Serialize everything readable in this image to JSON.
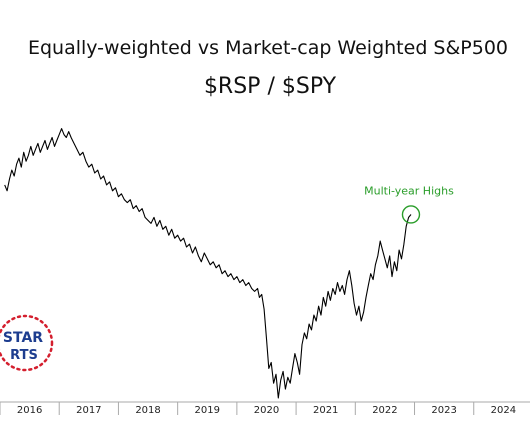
{
  "chart_data": {
    "type": "line",
    "title": "Equally-weighted vs Market-cap Weighted S&P500",
    "subtitle": "$RSP / $SPY",
    "xlabel": "",
    "ylabel": "",
    "grid": false,
    "x_ticks": [
      "2016",
      "2017",
      "2018",
      "2019",
      "2020",
      "2021",
      "2022",
      "2023",
      "2024"
    ],
    "x_range": [
      2015.5,
      2024.45
    ],
    "ylim": [
      0.0,
      1.0
    ],
    "series": [
      {
        "color": "#000000",
        "x": [
          2015.58,
          2015.62,
          2015.66,
          2015.7,
          2015.74,
          2015.78,
          2015.82,
          2015.86,
          2015.9,
          2015.94,
          2015.98,
          2016.02,
          2016.06,
          2016.1,
          2016.14,
          2016.18,
          2016.22,
          2016.26,
          2016.3,
          2016.34,
          2016.38,
          2016.42,
          2016.46,
          2016.5,
          2016.54,
          2016.58,
          2016.62,
          2016.66,
          2016.7,
          2016.75,
          2016.8,
          2016.85,
          2016.9,
          2016.95,
          2017.0,
          2017.05,
          2017.1,
          2017.15,
          2017.2,
          2017.25,
          2017.3,
          2017.35,
          2017.4,
          2017.45,
          2017.5,
          2017.55,
          2017.6,
          2017.65,
          2017.7,
          2017.75,
          2017.8,
          2017.85,
          2017.9,
          2017.95,
          2018.0,
          2018.05,
          2018.1,
          2018.15,
          2018.2,
          2018.25,
          2018.3,
          2018.35,
          2018.4,
          2018.45,
          2018.5,
          2018.55,
          2018.6,
          2018.65,
          2018.7,
          2018.75,
          2018.8,
          2018.85,
          2018.9,
          2018.95,
          2019.0,
          2019.05,
          2019.1,
          2019.15,
          2019.2,
          2019.25,
          2019.3,
          2019.35,
          2019.4,
          2019.45,
          2019.5,
          2019.55,
          2019.6,
          2019.65,
          2019.7,
          2019.75,
          2019.8,
          2019.85,
          2019.88,
          2019.92,
          2019.96,
          2020.0,
          2020.04,
          2020.08,
          2020.12,
          2020.16,
          2020.2,
          2020.24,
          2020.28,
          2020.32,
          2020.36,
          2020.4,
          2020.44,
          2020.48,
          2020.52,
          2020.56,
          2020.6,
          2020.64,
          2020.68,
          2020.72,
          2020.76,
          2020.8,
          2020.84,
          2020.88,
          2020.92,
          2020.96,
          2021.0,
          2021.04,
          2021.08,
          2021.12,
          2021.16,
          2021.2,
          2021.24,
          2021.28,
          2021.32,
          2021.36,
          2021.4,
          2021.44,
          2021.48,
          2021.52,
          2021.56,
          2021.6,
          2021.64,
          2021.68,
          2021.72,
          2021.76,
          2021.8,
          2021.84,
          2021.88,
          2021.92,
          2021.96,
          2022.0,
          2022.04,
          2022.08,
          2022.12,
          2022.16,
          2022.2,
          2022.24,
          2022.28,
          2022.32,
          2022.36,
          2022.4,
          2022.44
        ],
        "y": [
          0.72,
          0.7,
          0.74,
          0.77,
          0.75,
          0.79,
          0.81,
          0.78,
          0.83,
          0.8,
          0.82,
          0.85,
          0.82,
          0.84,
          0.86,
          0.83,
          0.85,
          0.87,
          0.84,
          0.86,
          0.88,
          0.85,
          0.87,
          0.89,
          0.91,
          0.89,
          0.88,
          0.9,
          0.88,
          0.86,
          0.84,
          0.82,
          0.83,
          0.8,
          0.78,
          0.79,
          0.76,
          0.77,
          0.74,
          0.75,
          0.72,
          0.73,
          0.7,
          0.71,
          0.68,
          0.69,
          0.67,
          0.66,
          0.67,
          0.64,
          0.65,
          0.63,
          0.64,
          0.61,
          0.6,
          0.59,
          0.61,
          0.58,
          0.6,
          0.57,
          0.58,
          0.55,
          0.57,
          0.54,
          0.55,
          0.53,
          0.54,
          0.51,
          0.52,
          0.49,
          0.51,
          0.48,
          0.46,
          0.49,
          0.47,
          0.45,
          0.46,
          0.44,
          0.45,
          0.42,
          0.43,
          0.41,
          0.42,
          0.4,
          0.41,
          0.39,
          0.4,
          0.38,
          0.39,
          0.37,
          0.36,
          0.37,
          0.34,
          0.35,
          0.3,
          0.2,
          0.1,
          0.12,
          0.05,
          0.08,
          0.0,
          0.06,
          0.09,
          0.03,
          0.07,
          0.05,
          0.1,
          0.15,
          0.12,
          0.08,
          0.18,
          0.22,
          0.2,
          0.25,
          0.23,
          0.28,
          0.26,
          0.31,
          0.28,
          0.34,
          0.31,
          0.36,
          0.33,
          0.37,
          0.35,
          0.39,
          0.36,
          0.38,
          0.35,
          0.4,
          0.43,
          0.38,
          0.32,
          0.28,
          0.31,
          0.26,
          0.29,
          0.34,
          0.38,
          0.42,
          0.4,
          0.45,
          0.48,
          0.53,
          0.5,
          0.47,
          0.44,
          0.48,
          0.41,
          0.46,
          0.43,
          0.5,
          0.47,
          0.52,
          0.58,
          0.61,
          0.62
        ]
      }
    ],
    "annotation": {
      "text": "Multi-year Highs",
      "color": "#2a9d2a",
      "x": 2022.44,
      "y": 0.62
    }
  },
  "logo": {
    "line1": "STAR",
    "line2": "RTS"
  }
}
